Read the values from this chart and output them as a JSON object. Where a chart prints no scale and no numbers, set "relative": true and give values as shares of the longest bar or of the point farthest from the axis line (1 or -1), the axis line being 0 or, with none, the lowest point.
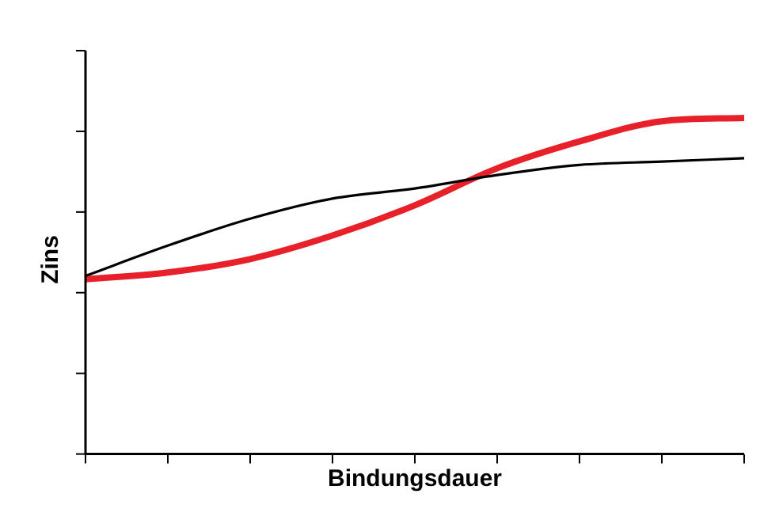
{
  "chart_data": {
    "type": "line",
    "xlabel": "Bindungsdauer",
    "ylabel": "Zins",
    "relative": true,
    "categories": [
      null,
      null,
      null,
      null,
      null,
      null,
      null,
      null,
      null
    ],
    "marker": "none",
    "grid": false,
    "legend": false,
    "series": [
      {
        "color": "#000000",
        "values": [
          0.53,
          0.62,
          0.7,
          0.76,
          0.79,
          0.83,
          0.86,
          0.87,
          0.88
        ]
      },
      {
        "color": "#e8202a",
        "values": [
          0.52,
          0.54,
          0.58,
          0.65,
          0.74,
          0.85,
          0.93,
          0.99,
          1.0
        ]
      }
    ]
  }
}
